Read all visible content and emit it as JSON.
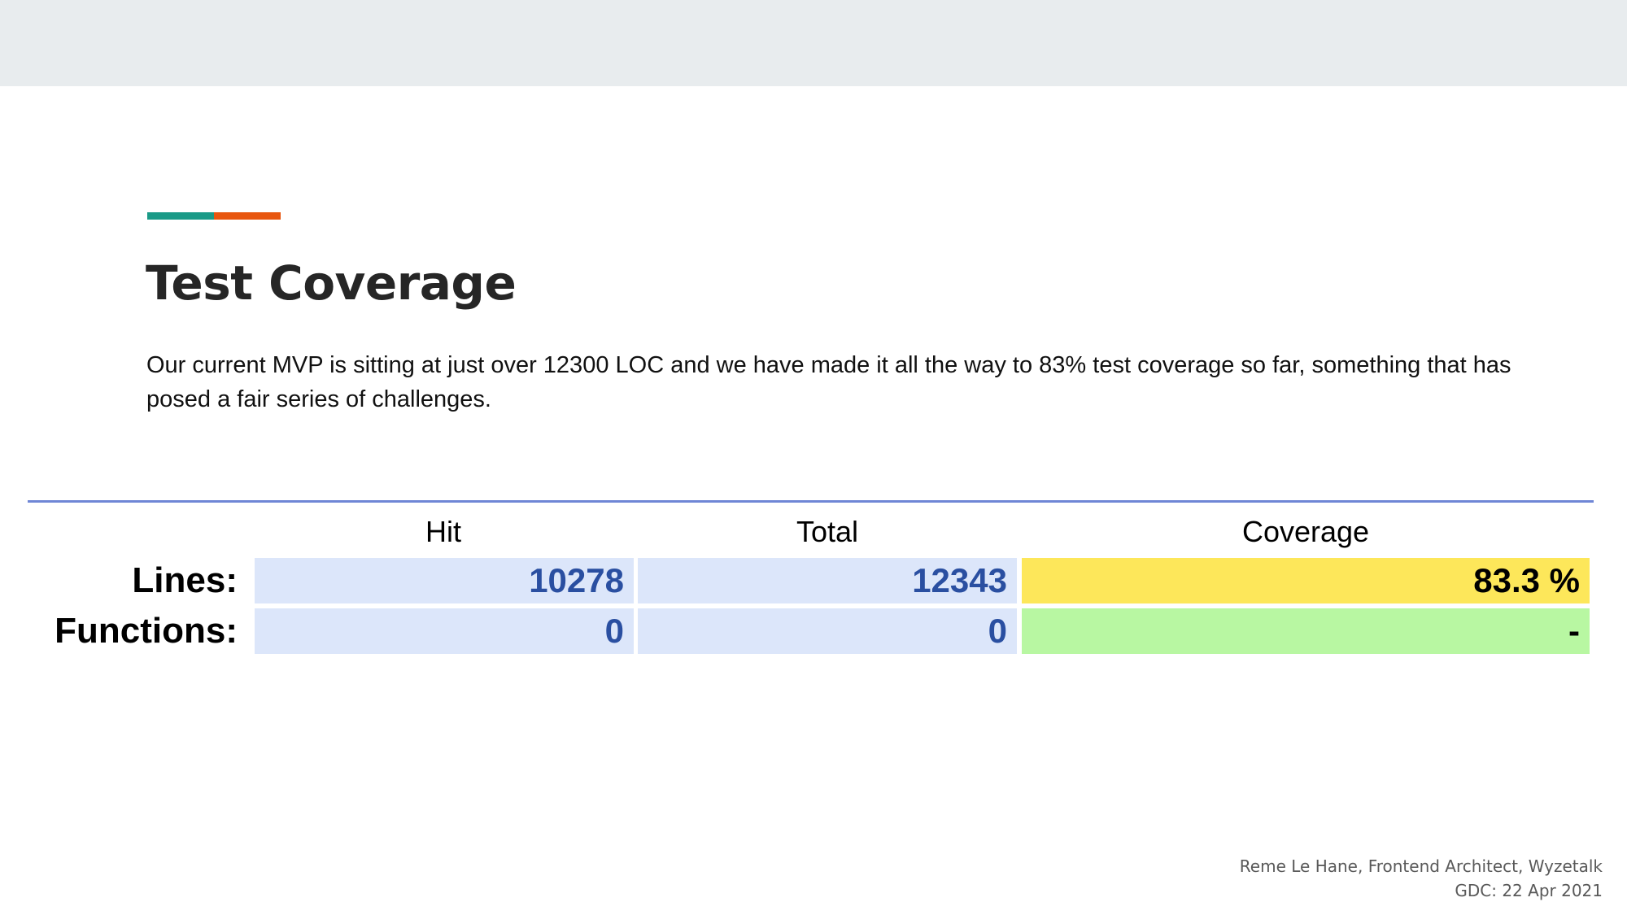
{
  "slide": {
    "title": "Test Coverage",
    "body": "Our current MVP is sitting at just over 12300 LOC and we have made it all the way to 83% test coverage so far, something that has posed a fair series of challenges."
  },
  "colors": {
    "header_band": "#e8ecee",
    "accent_teal": "#1a9a87",
    "accent_orange": "#e8560f",
    "table_rule": "#6f86d6",
    "cell_blue": "#dce6fa",
    "cell_yellow": "#fde75a",
    "cell_green": "#b8f7a2",
    "number_text": "#2a4fa1"
  },
  "coverage_table": {
    "headers": {
      "hit": "Hit",
      "total": "Total",
      "coverage": "Coverage"
    },
    "rows": [
      {
        "label": "Lines:",
        "hit": "10278",
        "total": "12343",
        "coverage": "83.3 %"
      },
      {
        "label": "Functions:",
        "hit": "0",
        "total": "0",
        "coverage": "-"
      }
    ]
  },
  "footer": {
    "line1": "Reme Le Hane, Frontend Architect, Wyzetalk",
    "line2": "GDC:  22 Apr 2021"
  }
}
